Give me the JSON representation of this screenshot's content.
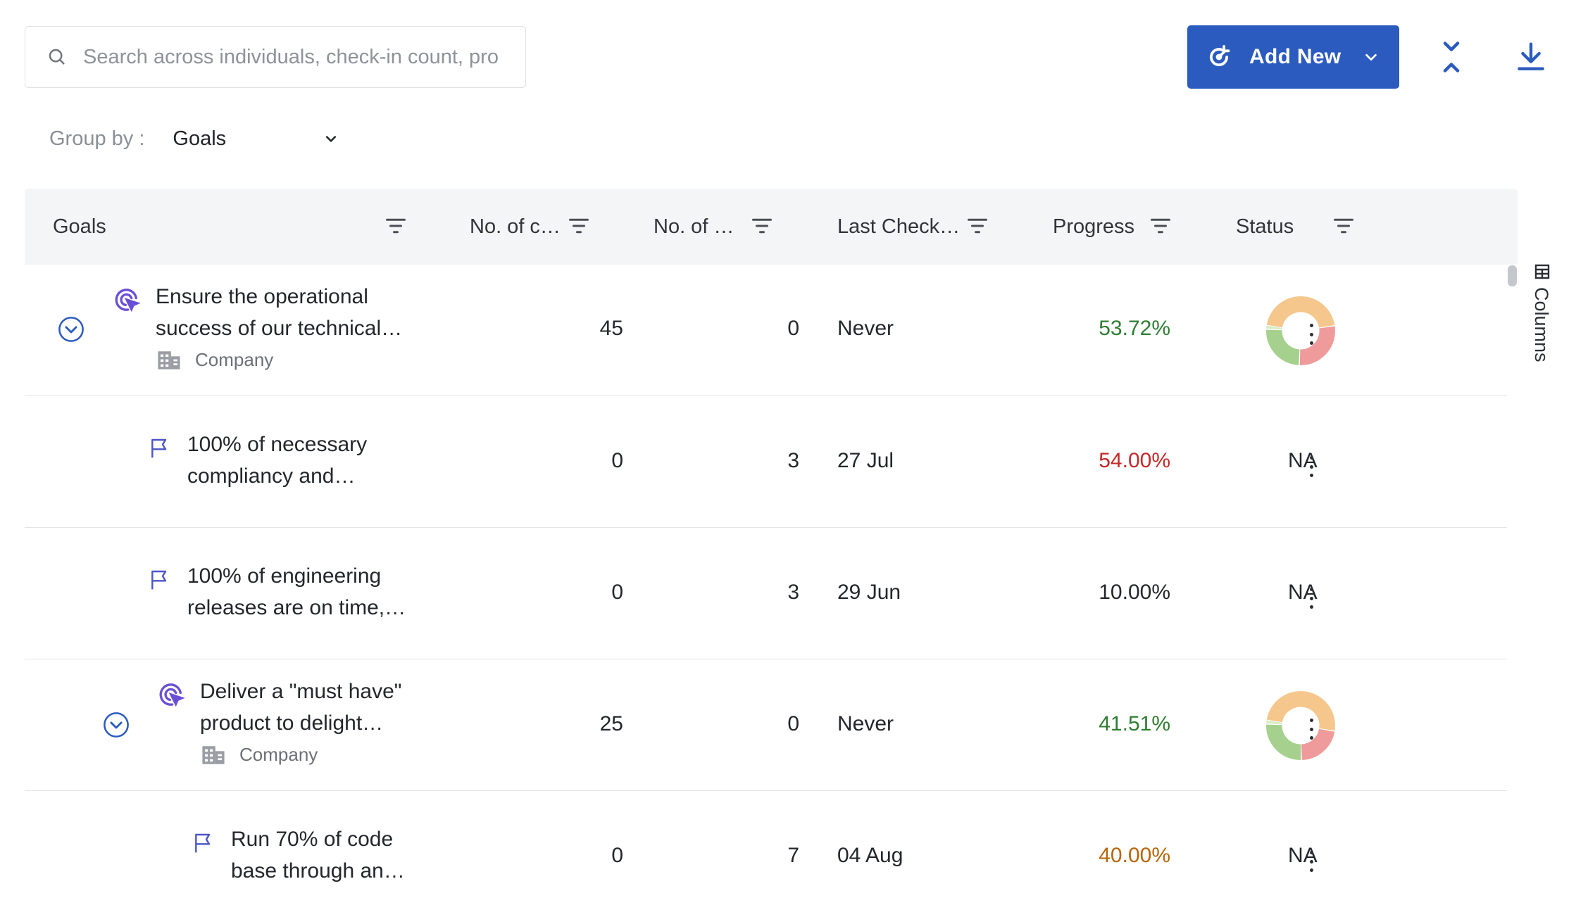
{
  "search": {
    "placeholder": "Search across individuals, check-in count, pro"
  },
  "toolbar": {
    "add_new_label": "Add New"
  },
  "group_by": {
    "label": "Group by :",
    "value": "Goals"
  },
  "table": {
    "headers": {
      "goals": "Goals",
      "checkins": "No. of c…",
      "second": "No. of …",
      "last_checkin": "Last Check…",
      "progress": "Progress",
      "status": "Status"
    },
    "rows": [
      {
        "title_line1": "Ensure the operational",
        "title_line2": "success of our technical…",
        "subtitle": "Company",
        "checkins": "45",
        "count": "0",
        "last_checkin": "Never",
        "progress": "53.72%",
        "progress_color": "#2e7d32",
        "status": "",
        "status_chart": [
          0.45,
          0.28,
          0.25,
          0.02
        ]
      },
      {
        "title_line1": "100% of necessary",
        "title_line2": "compliancy and…",
        "checkins": "0",
        "count": "3",
        "last_checkin": "27 Jul",
        "progress": "54.00%",
        "progress_color": "#c62828",
        "status": "NA"
      },
      {
        "title_line1": "100% of engineering",
        "title_line2": "releases are on time,…",
        "checkins": "0",
        "count": "3",
        "last_checkin": "29 Jun",
        "progress": "10.00%",
        "progress_color": "#23272c",
        "status": "NA"
      },
      {
        "title_line1": "Deliver a \"must have\"",
        "title_line2": "product to delight…",
        "subtitle": "Company",
        "checkins": "25",
        "count": "0",
        "last_checkin": "Never",
        "progress": "41.51%",
        "progress_color": "#2e7d32",
        "status": "",
        "status_chart": [
          0.5,
          0.22,
          0.26,
          0.02
        ]
      },
      {
        "title_line1": "Run 70% of code",
        "title_line2": "base through an…",
        "checkins": "0",
        "count": "7",
        "last_checkin": "04 Aug",
        "progress": "40.00%",
        "progress_color": "#b8650a",
        "status": "NA"
      }
    ],
    "status_colors": {
      "orange": "#f5c78c",
      "red": "#ef9b9b",
      "green": "#a6d08d",
      "light_green": "#d8ecc8"
    }
  },
  "side_panel": {
    "columns_label": "Columns"
  },
  "colors": {
    "accent": "#2b5bbf",
    "goal_icon": "#6a4fd6",
    "flag_icon": "#4a55c9"
  }
}
